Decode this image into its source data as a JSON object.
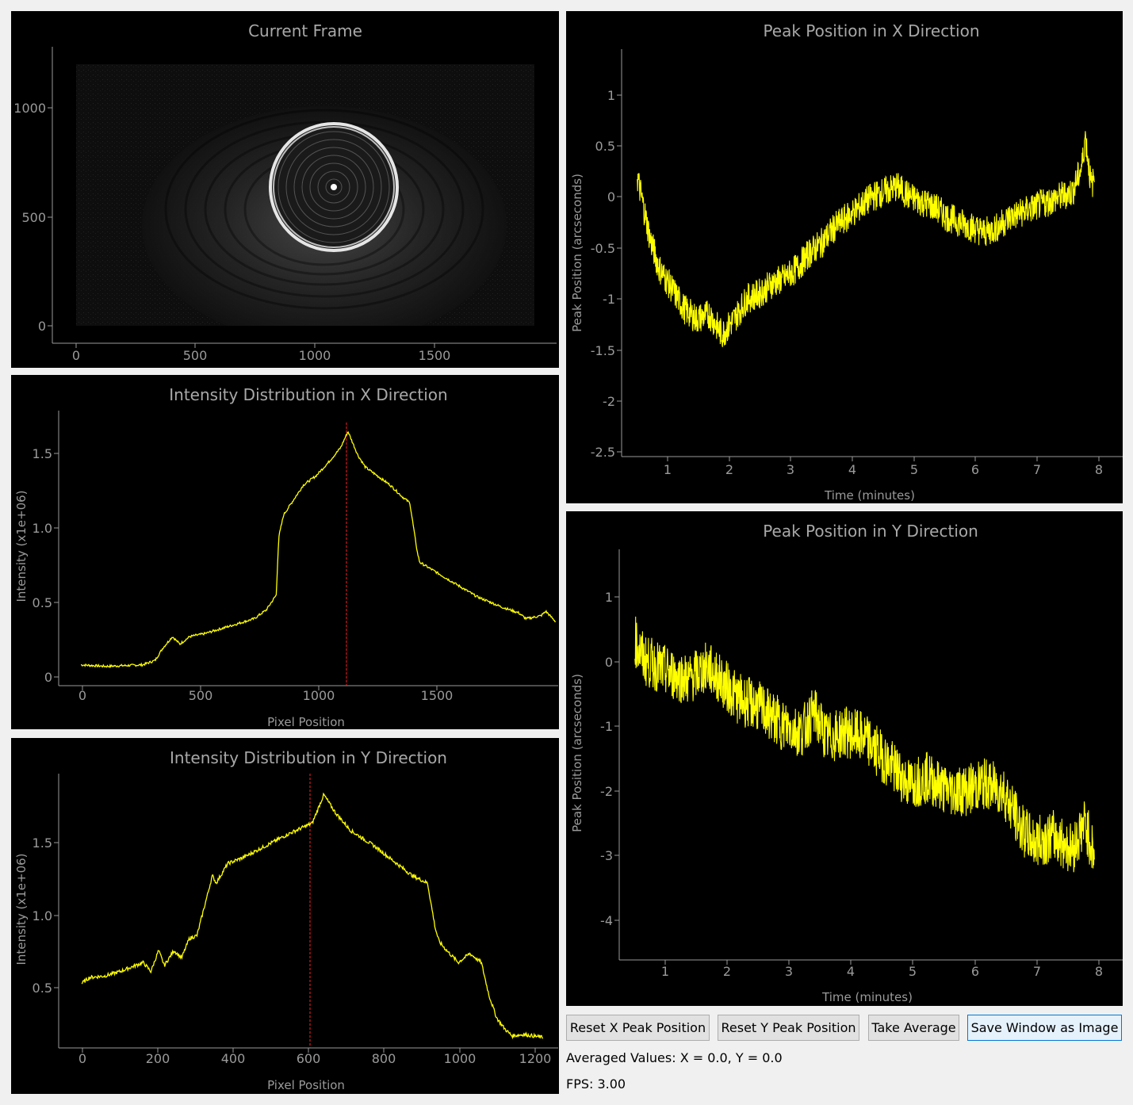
{
  "colors": {
    "trace": "#ffff00",
    "marker": "#ff2020",
    "axis": "#9a9a9a",
    "panel_bg": "#000000",
    "window_bg": "#f0f0f0"
  },
  "frame_panel": {
    "title": "Current Frame",
    "x_ticks": [
      "0",
      "500",
      "1000",
      "1500"
    ],
    "y_ticks": [
      "0",
      "500",
      "1000"
    ]
  },
  "intensity_x": {
    "title": "Intensity Distribution in X Direction",
    "xlabel": "Pixel Position",
    "ylabel": "Intensity (x1e+06)",
    "x_ticks": [
      "0",
      "500",
      "1000",
      "1500"
    ],
    "y_ticks": [
      "0",
      "0.5",
      "1.0",
      "1.5"
    ]
  },
  "intensity_y": {
    "title": "Intensity Distribution in Y Direction",
    "xlabel": "Pixel Position",
    "ylabel": "Intensity (x1e+06)",
    "x_ticks": [
      "0",
      "200",
      "400",
      "600",
      "800",
      "1000",
      "1200"
    ],
    "y_ticks": [
      "0.5",
      "1.0",
      "1.5"
    ]
  },
  "peak_x": {
    "title": "Peak Position in X Direction",
    "xlabel": "Time (minutes)",
    "ylabel": "Peak Position (arcseconds)",
    "x_ticks": [
      "1",
      "2",
      "3",
      "4",
      "5",
      "6",
      "7",
      "8"
    ],
    "y_ticks": [
      "1",
      "0.5",
      "0",
      "-0.5",
      "-1",
      "-1.5",
      "-2",
      "-2.5"
    ]
  },
  "peak_y": {
    "title": "Peak Position in Y Direction",
    "xlabel": "Time (minutes)",
    "ylabel": "Peak Position (arcseconds)",
    "x_ticks": [
      "1",
      "2",
      "3",
      "4",
      "5",
      "6",
      "7",
      "8"
    ],
    "y_ticks": [
      "1",
      "0",
      "-1",
      "-2",
      "-3",
      "-4"
    ]
  },
  "buttons": {
    "reset_x": "Reset X Peak Position",
    "reset_y": "Reset Y Peak Position",
    "take_average": "Take Average",
    "save_window": "Save Window as Image"
  },
  "status": {
    "averaged": "Averaged Values: X = 0.0, Y = 0.0",
    "fps": "FPS: 3.00"
  },
  "chart_data": [
    {
      "type": "line",
      "title": "Intensity Distribution in X Direction",
      "xlabel": "Pixel Position",
      "ylabel": "Intensity (x1e+06)",
      "xlim": [
        -90,
        1930
      ],
      "ylim": [
        -0.05,
        1.8
      ],
      "marker_x": 1120,
      "x": [
        0,
        100,
        250,
        300,
        330,
        370,
        400,
        440,
        500,
        600,
        700,
        750,
        790,
        800,
        820,
        860,
        900,
        950,
        1000,
        1050,
        1080,
        1100,
        1120,
        1150,
        1200,
        1250,
        1300,
        1330,
        1360,
        1370,
        1400,
        1500,
        1600,
        1700,
        1770,
        1800,
        1860,
        1880,
        1920
      ],
      "y": [
        0.09,
        0.08,
        0.09,
        0.12,
        0.2,
        0.28,
        0.23,
        0.28,
        0.3,
        0.35,
        0.4,
        0.46,
        0.56,
        0.95,
        1.1,
        1.2,
        1.3,
        1.36,
        1.45,
        1.55,
        1.66,
        1.58,
        1.5,
        1.42,
        1.36,
        1.3,
        1.22,
        1.18,
        0.85,
        0.78,
        0.75,
        0.65,
        0.55,
        0.48,
        0.44,
        0.4,
        0.42,
        0.45,
        0.38
      ]
    },
    {
      "type": "line",
      "title": "Intensity Distribution in Y Direction",
      "xlabel": "Pixel Position",
      "ylabel": "Intensity (x1e+06)",
      "xlim": [
        -60,
        1240
      ],
      "ylim": [
        0.15,
        1.98
      ],
      "marker_x": 603,
      "x": [
        0,
        20,
        60,
        100,
        160,
        180,
        200,
        215,
        240,
        260,
        280,
        300,
        320,
        340,
        350,
        380,
        420,
        480,
        540,
        600,
        630,
        660,
        700,
        760,
        820,
        860,
        900,
        920,
        930,
        950,
        980,
        1010,
        1040,
        1060,
        1080,
        1100,
        1120,
        1150,
        1200
      ],
      "y": [
        0.58,
        0.62,
        0.63,
        0.66,
        0.72,
        0.66,
        0.8,
        0.7,
        0.8,
        0.75,
        0.88,
        0.9,
        1.1,
        1.3,
        1.25,
        1.38,
        1.42,
        1.5,
        1.58,
        1.65,
        1.84,
        1.72,
        1.6,
        1.5,
        1.38,
        1.3,
        1.25,
        0.95,
        0.86,
        0.8,
        0.72,
        0.78,
        0.72,
        0.5,
        0.35,
        0.28,
        0.23,
        0.24,
        0.22
      ]
    },
    {
      "type": "line",
      "title": "Peak Position in X Direction",
      "xlabel": "Time (minutes)",
      "ylabel": "Peak Position (arcseconds)",
      "xlim": [
        0.4,
        8.4
      ],
      "ylim": [
        -2.55,
        1.45
      ],
      "x": [
        0.65,
        0.75,
        0.85,
        1.0,
        1.2,
        1.4,
        1.6,
        1.8,
        2.0,
        2.2,
        2.4,
        2.6,
        2.8,
        3.0,
        3.2,
        3.4,
        3.6,
        3.8,
        4.0,
        4.2,
        4.4,
        4.6,
        4.8,
        5.0,
        5.2,
        5.4,
        5.6,
        5.8,
        6.0,
        6.2,
        6.4,
        6.6,
        6.8,
        7.0,
        7.2,
        7.4,
        7.6,
        7.75,
        7.8,
        7.9,
        7.95
      ],
      "y": [
        0.2,
        -0.1,
        -0.4,
        -0.7,
        -0.9,
        -1.1,
        -1.2,
        -1.15,
        -1.35,
        -1.2,
        -1.0,
        -0.95,
        -0.85,
        -0.8,
        -0.7,
        -0.55,
        -0.45,
        -0.3,
        -0.2,
        -0.1,
        0.0,
        0.05,
        0.1,
        0.0,
        -0.05,
        -0.1,
        -0.2,
        -0.25,
        -0.3,
        -0.35,
        -0.3,
        -0.2,
        -0.15,
        -0.1,
        -0.05,
        0.0,
        0.05,
        0.3,
        0.6,
        0.1,
        0.2
      ],
      "noise": 0.15
    },
    {
      "type": "line",
      "title": "Peak Position in Y Direction",
      "xlabel": "Time (minutes)",
      "ylabel": "Peak Position (arcseconds)",
      "xlim": [
        0.4,
        8.4
      ],
      "ylim": [
        -4.6,
        1.7
      ],
      "x": [
        0.65,
        0.8,
        1.0,
        1.2,
        1.5,
        1.8,
        2.0,
        2.3,
        2.6,
        3.0,
        3.3,
        3.5,
        3.7,
        4.0,
        4.3,
        4.6,
        5.0,
        5.3,
        5.6,
        5.9,
        6.2,
        6.5,
        6.8,
        7.0,
        7.3,
        7.6,
        7.8,
        7.95
      ],
      "y": [
        0.3,
        0.0,
        -0.1,
        -0.2,
        -0.3,
        -0.1,
        -0.3,
        -0.6,
        -0.7,
        -1.0,
        -1.1,
        -0.8,
        -1.2,
        -1.1,
        -1.2,
        -1.5,
        -1.9,
        -1.8,
        -2.0,
        -2.0,
        -1.9,
        -2.0,
        -2.6,
        -2.8,
        -2.7,
        -2.9,
        -2.5,
        -3.0
      ],
      "noise": 0.4
    }
  ]
}
